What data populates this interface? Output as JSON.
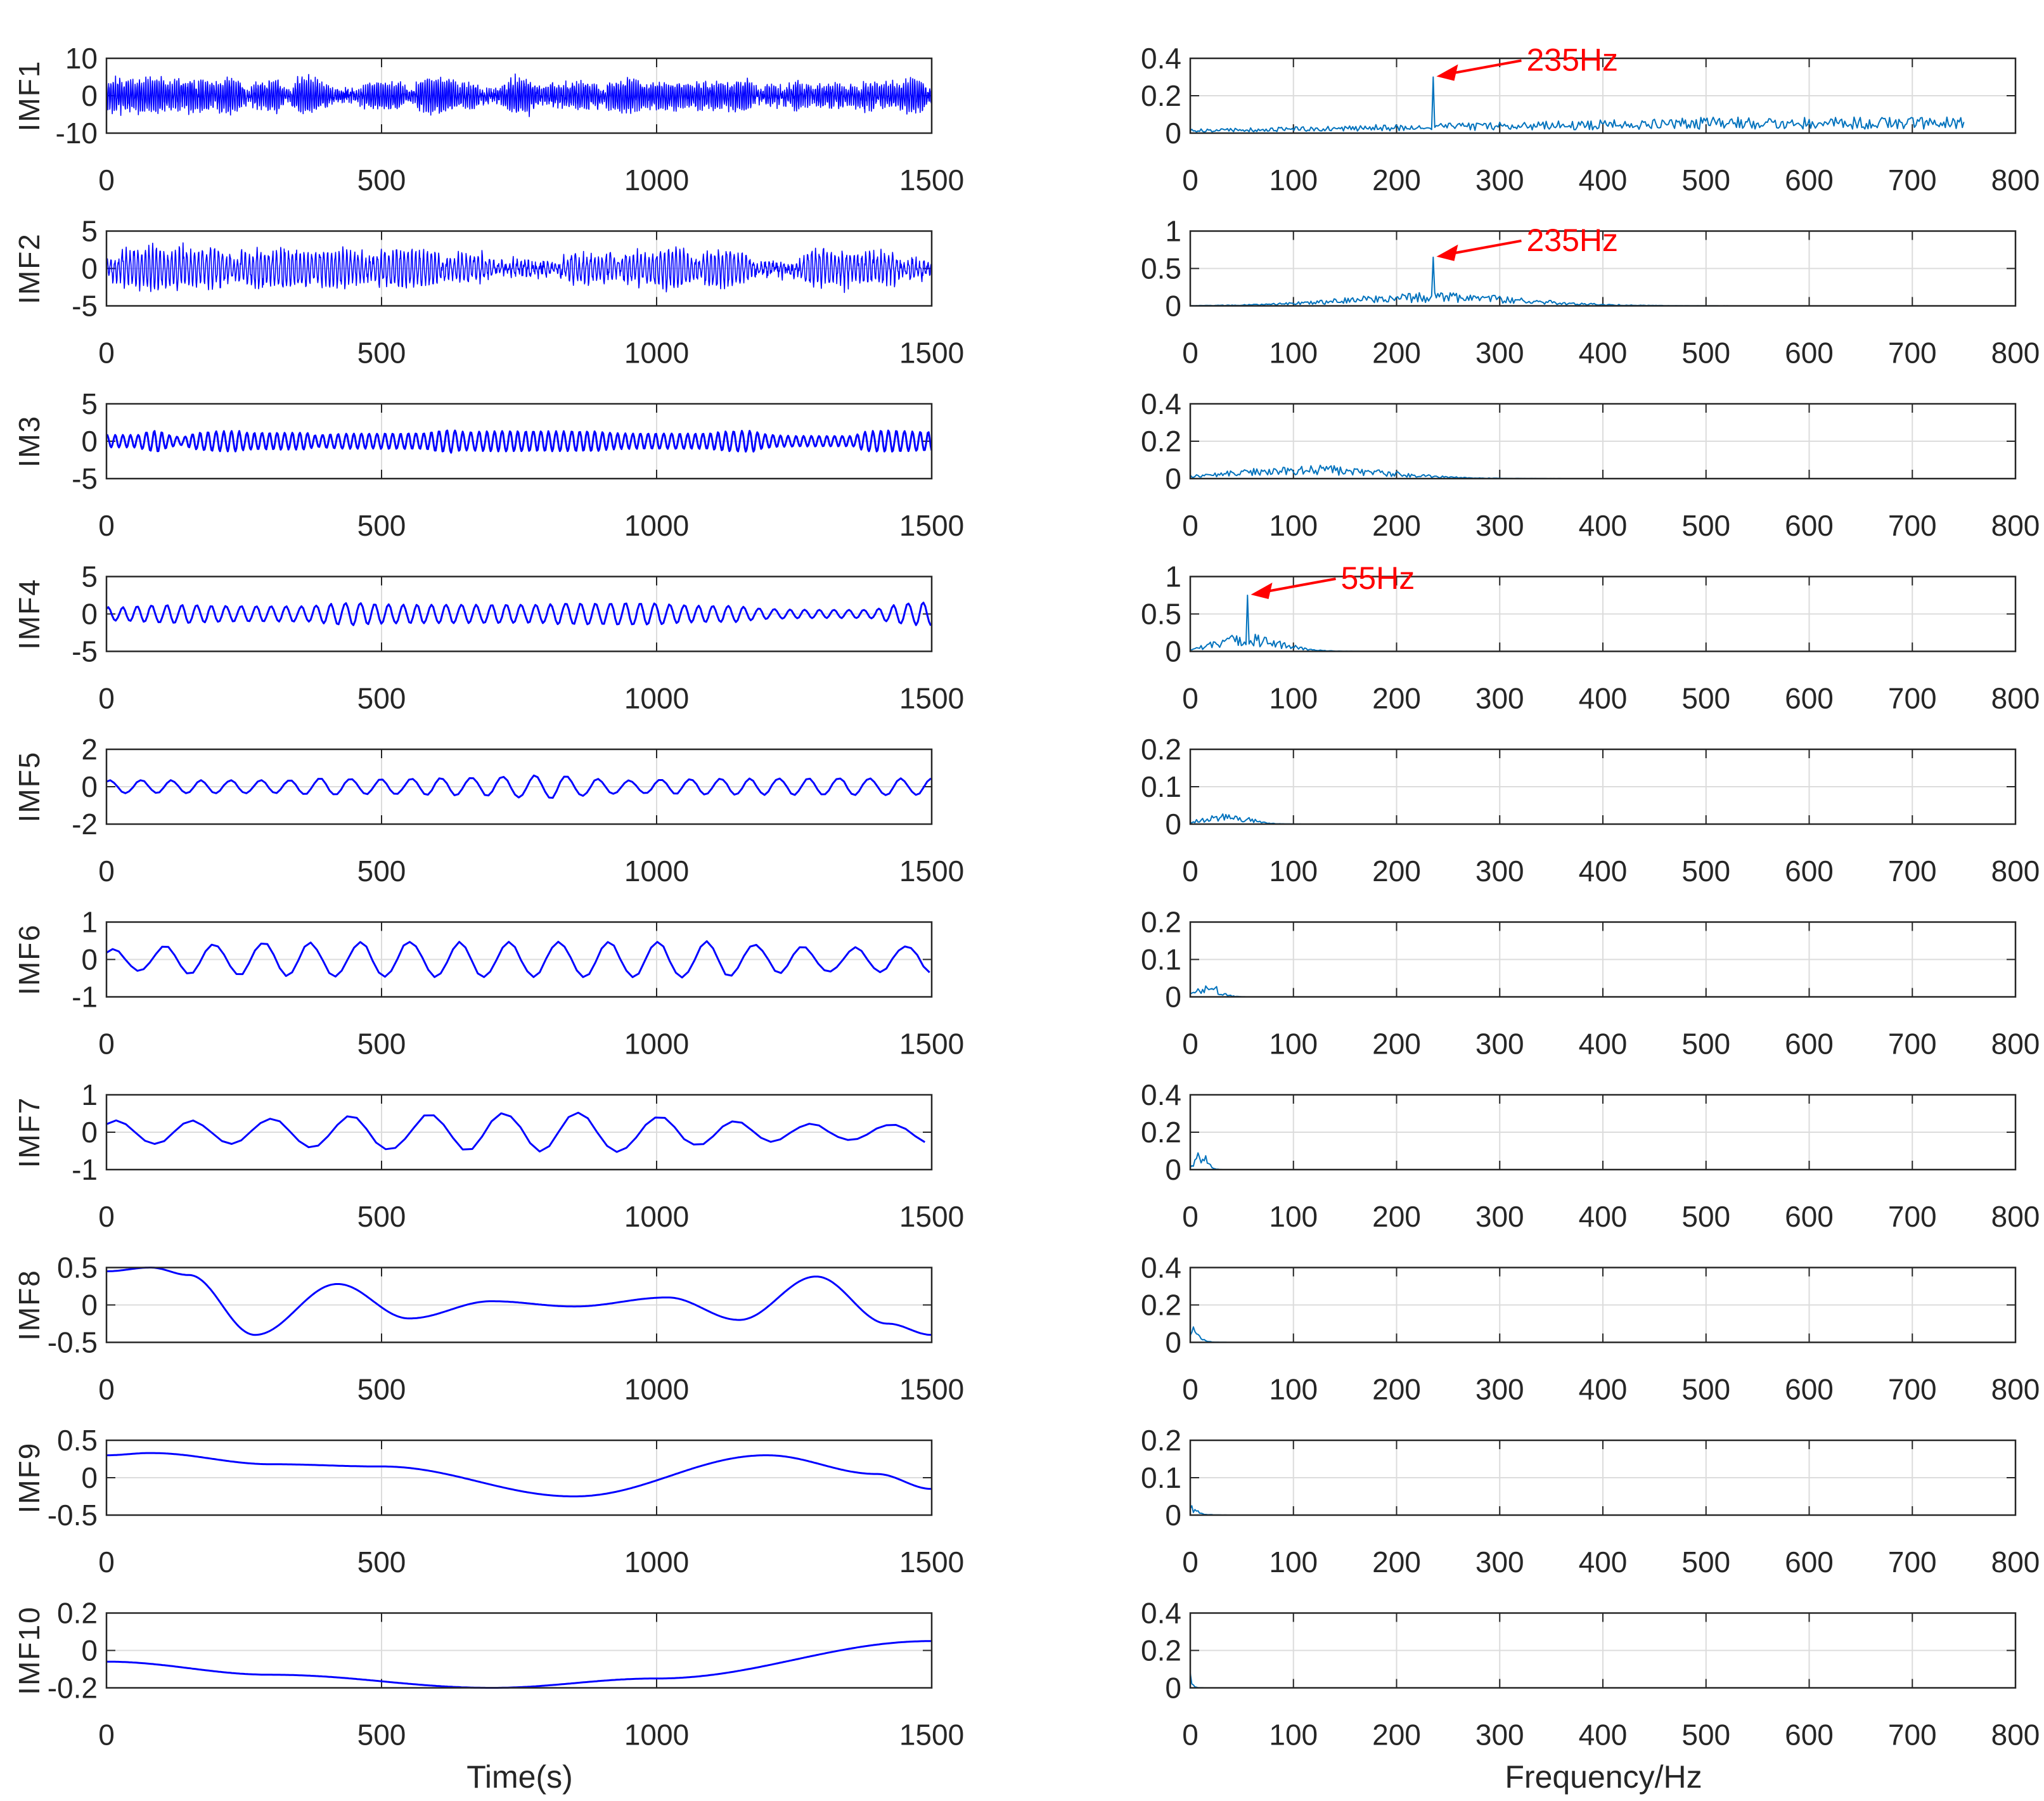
{
  "chart_data": {
    "type": "line",
    "layout": "10 rows x 2 columns (left: time-domain IMF waveforms, right: frequency spectra)",
    "colors": {
      "time_series": "#0000ff",
      "spectrum": "#0072bd",
      "annotation": "#ff0000",
      "grid": "#dcdcdc",
      "axes": "#262626"
    },
    "left_column": {
      "xlabel": "Time(s)",
      "xlim": [
        0,
        1500
      ],
      "xticks": [
        "0",
        "500",
        "1000",
        "1500"
      ],
      "panels": [
        {
          "ylabel": "IMF1",
          "ylim": [
            -10,
            10
          ],
          "yticks": [
            "10",
            "0",
            "-10"
          ],
          "amplitude": 3.0,
          "peak": 7,
          "period": 4,
          "smooth": 1
        },
        {
          "ylabel": "IMF2",
          "ylim": [
            -5,
            5
          ],
          "yticks": [
            "5",
            "0",
            "-5"
          ],
          "amplitude": 1.8,
          "peak": 4,
          "period": 7,
          "smooth": 1
        },
        {
          "ylabel": "IM3",
          "ylim": [
            -5,
            5
          ],
          "yticks": [
            "5",
            "0",
            "-5"
          ],
          "amplitude": 1.2,
          "peak": 2.5,
          "period": 14,
          "smooth": 1
        },
        {
          "ylabel": "IMF4",
          "ylim": [
            -5,
            5
          ],
          "yticks": [
            "5",
            "0",
            "-5"
          ],
          "amplitude": 1.3,
          "peak": 2.5,
          "period": 27,
          "smooth": 1
        },
        {
          "ylabel": "IMF5",
          "ylim": [
            -2,
            2
          ],
          "yticks": [
            "2",
            "0",
            "-2"
          ],
          "amplitude": 0.5,
          "peak": 1.5,
          "period": 55,
          "smooth": 1
        },
        {
          "ylabel": "IMF6",
          "ylim": [
            -1,
            1
          ],
          "yticks": [
            "1",
            "0",
            "-1"
          ],
          "amplitude": 0.4,
          "peak": 0.75,
          "period": 90,
          "smooth": 1
        },
        {
          "ylabel": "IMF7",
          "ylim": [
            -1,
            1
          ],
          "yticks": [
            "1",
            "0",
            "-1"
          ],
          "amplitude": 0.45,
          "peak": 0.7,
          "period": 140,
          "smooth": 1
        },
        {
          "ylabel": "IMF8",
          "ylim": [
            -0.5,
            0.5
          ],
          "yticks": [
            "0.5",
            "0",
            "-0.5"
          ],
          "curve": [
            [
              0,
              0.45
            ],
            [
              80,
              0.5
            ],
            [
              150,
              0.4
            ],
            [
              270,
              -0.4
            ],
            [
              420,
              0.28
            ],
            [
              550,
              -0.18
            ],
            [
              700,
              0.05
            ],
            [
              850,
              -0.02
            ],
            [
              1020,
              0.1
            ],
            [
              1150,
              -0.2
            ],
            [
              1290,
              0.38
            ],
            [
              1420,
              -0.25
            ],
            [
              1500,
              -0.4
            ]
          ]
        },
        {
          "ylabel": "IMF9",
          "ylim": [
            -0.5,
            0.5
          ],
          "yticks": [
            "0.5",
            "0",
            "-0.5"
          ],
          "curve": [
            [
              0,
              0.3
            ],
            [
              80,
              0.33
            ],
            [
              300,
              0.18
            ],
            [
              500,
              0.15
            ],
            [
              850,
              -0.25
            ],
            [
              1200,
              0.3
            ],
            [
              1400,
              0.05
            ],
            [
              1500,
              -0.15
            ]
          ]
        },
        {
          "ylabel": "IMF10",
          "ylim": [
            -0.2,
            0.2
          ],
          "yticks": [
            "0.2",
            "0",
            "-0.2"
          ],
          "curve": [
            [
              0,
              -0.06
            ],
            [
              300,
              -0.13
            ],
            [
              700,
              -0.2
            ],
            [
              1000,
              -0.15
            ],
            [
              1500,
              0.05
            ]
          ]
        }
      ]
    },
    "right_column": {
      "xlabel": "Frequency/Hz",
      "xlim": [
        0,
        800
      ],
      "xticks": [
        "0",
        "100",
        "200",
        "300",
        "400",
        "500",
        "600",
        "700",
        "800"
      ],
      "data_xmax": 750,
      "panels": [
        {
          "ylim": [
            0,
            0.4
          ],
          "yticks": [
            "0.4",
            "0.2",
            "0"
          ],
          "shape": "broadband",
          "level": 0.18,
          "peak": {
            "freq": 235,
            "value": 0.3,
            "label": "235Hz"
          }
        },
        {
          "ylim": [
            0,
            1
          ],
          "yticks": [
            "1",
            "0.5",
            "0"
          ],
          "shape": "band",
          "center": 235,
          "width": 120,
          "level": 0.15,
          "peak": {
            "freq": 235,
            "value": 0.65,
            "label": "235Hz"
          }
        },
        {
          "ylim": [
            0,
            0.4
          ],
          "yticks": [
            "0.4",
            "0.2",
            "0"
          ],
          "shape": "band",
          "center": 115,
          "width": 100,
          "level": 0.16
        },
        {
          "ylim": [
            0,
            1
          ],
          "yticks": [
            "1",
            "0.5",
            "0"
          ],
          "shape": "band",
          "center": 55,
          "width": 45,
          "level": 0.2,
          "peak": {
            "freq": 55,
            "value": 0.75,
            "label": "55Hz"
          }
        },
        {
          "ylim": [
            0,
            0.2
          ],
          "yticks": [
            "0.2",
            "0.1",
            "0"
          ],
          "shape": "band",
          "center": 35,
          "width": 30,
          "level": 0.13
        },
        {
          "ylim": [
            0,
            0.2
          ],
          "yticks": [
            "0.2",
            "0.1",
            "0"
          ],
          "shape": "band",
          "center": 18,
          "width": 15,
          "level": 0.16
        },
        {
          "ylim": [
            0,
            0.4
          ],
          "yticks": [
            "0.4",
            "0.2",
            "0"
          ],
          "shape": "band",
          "center": 10,
          "width": 9,
          "level": 0.22
        },
        {
          "ylim": [
            0,
            0.4
          ],
          "yticks": [
            "0.4",
            "0.2",
            "0"
          ],
          "shape": "decay",
          "center": 5,
          "width": 5,
          "level": 0.22
        },
        {
          "ylim": [
            0,
            0.2
          ],
          "yticks": [
            "0.2",
            "0.1",
            "0"
          ],
          "shape": "decay",
          "center": 1,
          "width": 6,
          "level": 0.16
        },
        {
          "ylim": [
            0,
            0.4
          ],
          "yticks": [
            "0.4",
            "0.2",
            "0"
          ],
          "shape": "decay",
          "center": 0,
          "width": 2,
          "level": 0.22
        }
      ]
    },
    "annotations": [
      "235Hz",
      "235Hz",
      "55Hz"
    ]
  }
}
